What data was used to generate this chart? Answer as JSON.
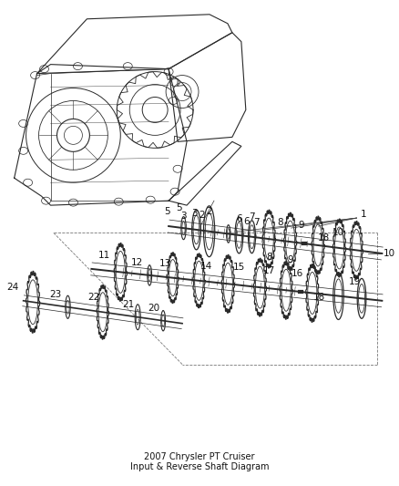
{
  "title": "2007 Chrysler PT Cruiser\nInput & Reverse Shaft Diagram",
  "bg_color": "#ffffff",
  "line_color": "#2a2a2a",
  "label_color": "#111111",
  "fig_width": 4.38,
  "fig_height": 5.33,
  "dpi": 100
}
